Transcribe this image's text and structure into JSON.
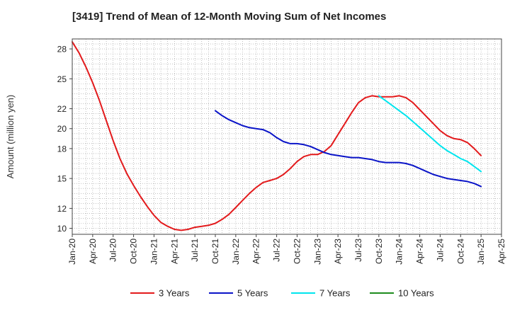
{
  "chart_data": {
    "type": "line",
    "title": "[3419]  Trend of Mean of 12-Month Moving Sum of Net Incomes",
    "xlabel": "",
    "ylabel": "Amount (million yen)",
    "ylim": [
      9.4,
      29
    ],
    "yticks": [
      10,
      12,
      15,
      18,
      20,
      22,
      25,
      28
    ],
    "xticks": [
      "Jan-20",
      "Apr-20",
      "Jul-20",
      "Oct-20",
      "Jan-21",
      "Apr-21",
      "Jul-21",
      "Oct-21",
      "Jan-22",
      "Apr-22",
      "Jul-22",
      "Oct-22",
      "Jan-23",
      "Apr-23",
      "Jul-23",
      "Oct-23",
      "Jan-24",
      "Apr-24",
      "Jul-24",
      "Oct-24",
      "Jan-25",
      "Apr-25"
    ],
    "grid": true,
    "legend_position": "bottom",
    "series": [
      {
        "name": "3 Years",
        "color": "#e31a1c",
        "x": [
          "Jan-20",
          "Feb-20",
          "Mar-20",
          "Apr-20",
          "May-20",
          "Jun-20",
          "Jul-20",
          "Aug-20",
          "Sep-20",
          "Oct-20",
          "Nov-20",
          "Dec-20",
          "Jan-21",
          "Feb-21",
          "Mar-21",
          "Apr-21",
          "May-21",
          "Jun-21",
          "Jul-21",
          "Aug-21",
          "Sep-21",
          "Oct-21",
          "Nov-21",
          "Dec-21",
          "Jan-22",
          "Feb-22",
          "Mar-22",
          "Apr-22",
          "May-22",
          "Jun-22",
          "Jul-22",
          "Aug-22",
          "Sep-22",
          "Oct-22",
          "Nov-22",
          "Dec-22",
          "Jan-23",
          "Feb-23",
          "Mar-23",
          "Apr-23",
          "May-23",
          "Jun-23",
          "Jul-23",
          "Aug-23",
          "Sep-23",
          "Oct-23",
          "Nov-23",
          "Dec-23",
          "Jan-24",
          "Feb-24",
          "Mar-24",
          "Apr-24",
          "May-24",
          "Jun-24",
          "Jul-24",
          "Aug-24",
          "Sep-24",
          "Oct-24",
          "Nov-24",
          "Dec-24",
          "Jan-25"
        ],
        "values": [
          28.7,
          27.6,
          26.2,
          24.6,
          22.8,
          20.8,
          18.8,
          17.0,
          15.5,
          14.3,
          13.2,
          12.2,
          11.3,
          10.6,
          10.2,
          9.9,
          9.8,
          9.9,
          10.1,
          10.2,
          10.3,
          10.5,
          10.9,
          11.4,
          12.1,
          12.8,
          13.5,
          14.1,
          14.6,
          14.8,
          15.0,
          15.4,
          16.0,
          16.7,
          17.2,
          17.4,
          17.4,
          17.7,
          18.3,
          19.4,
          20.5,
          21.6,
          22.6,
          23.1,
          23.3,
          23.2,
          23.2,
          23.2,
          23.3,
          23.1,
          22.6,
          21.9,
          21.2,
          20.5,
          19.8,
          19.3,
          19.0,
          18.9,
          18.6,
          18.0,
          17.3
        ]
      },
      {
        "name": "5 Years",
        "color": "#0a14c8",
        "x": [
          "Oct-21",
          "Nov-21",
          "Dec-21",
          "Jan-22",
          "Feb-22",
          "Mar-22",
          "Apr-22",
          "May-22",
          "Jun-22",
          "Jul-22",
          "Aug-22",
          "Sep-22",
          "Oct-22",
          "Nov-22",
          "Dec-22",
          "Jan-23",
          "Feb-23",
          "Mar-23",
          "Apr-23",
          "May-23",
          "Jun-23",
          "Jul-23",
          "Aug-23",
          "Sep-23",
          "Oct-23",
          "Nov-23",
          "Dec-23",
          "Jan-24",
          "Feb-24",
          "Mar-24",
          "Apr-24",
          "May-24",
          "Jun-24",
          "Jul-24",
          "Aug-24",
          "Sep-24",
          "Oct-24",
          "Nov-24",
          "Dec-24",
          "Jan-25"
        ],
        "values": [
          21.8,
          21.3,
          20.9,
          20.6,
          20.3,
          20.1,
          20.0,
          19.9,
          19.6,
          19.1,
          18.7,
          18.5,
          18.5,
          18.4,
          18.2,
          17.9,
          17.6,
          17.4,
          17.3,
          17.2,
          17.1,
          17.1,
          17.0,
          16.9,
          16.7,
          16.6,
          16.6,
          16.6,
          16.5,
          16.3,
          16.0,
          15.7,
          15.4,
          15.2,
          15.0,
          14.9,
          14.8,
          14.7,
          14.5,
          14.2
        ]
      },
      {
        "name": "7 Years",
        "color": "#00e5ee",
        "x": [
          "Oct-23",
          "Nov-23",
          "Dec-23",
          "Jan-24",
          "Feb-24",
          "Mar-24",
          "Apr-24",
          "May-24",
          "Jun-24",
          "Jul-24",
          "Aug-24",
          "Sep-24",
          "Oct-24",
          "Nov-24",
          "Dec-24",
          "Jan-25"
        ],
        "values": [
          23.3,
          22.8,
          22.3,
          21.8,
          21.3,
          20.7,
          20.1,
          19.5,
          18.9,
          18.3,
          17.8,
          17.4,
          17.0,
          16.7,
          16.2,
          15.7
        ]
      },
      {
        "name": "10 Years",
        "color": "#1e8c1e",
        "x": [],
        "values": []
      }
    ]
  }
}
